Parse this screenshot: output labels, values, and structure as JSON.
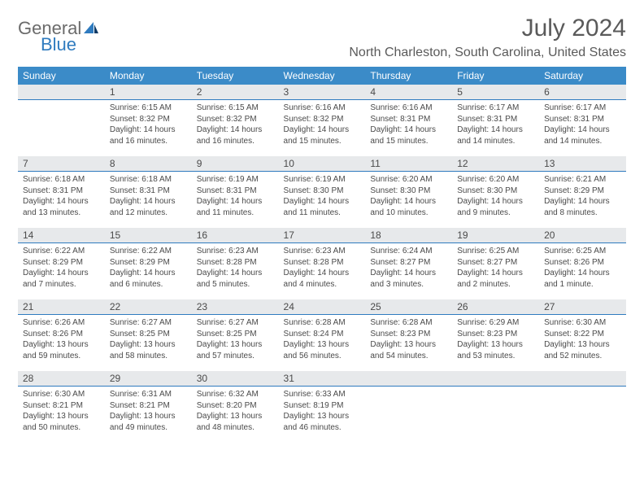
{
  "brand": {
    "word1": "General",
    "word2": "Blue"
  },
  "title": "July 2024",
  "location": "North Charleston, South Carolina, United States",
  "colors": {
    "header_bg": "#3b8bc8",
    "header_text": "#ffffff",
    "daynum_bg": "#e7e9eb",
    "rule": "#2f7bbf",
    "body_text": "#4a4a4a",
    "title_text": "#5a5a5a",
    "brand_grey": "#6b6b6b",
    "brand_blue": "#2f7bbf",
    "page_bg": "#ffffff"
  },
  "typography": {
    "title_fontsize": 30,
    "location_fontsize": 16,
    "header_fontsize": 12,
    "daynum_fontsize": 12,
    "body_fontsize": 10
  },
  "weekdays": [
    "Sunday",
    "Monday",
    "Tuesday",
    "Wednesday",
    "Thursday",
    "Friday",
    "Saturday"
  ],
  "weeks": [
    [
      null,
      {
        "n": "1",
        "sr": "Sunrise: 6:15 AM",
        "ss": "Sunset: 8:32 PM",
        "d1": "Daylight: 14 hours",
        "d2": "and 16 minutes."
      },
      {
        "n": "2",
        "sr": "Sunrise: 6:15 AM",
        "ss": "Sunset: 8:32 PM",
        "d1": "Daylight: 14 hours",
        "d2": "and 16 minutes."
      },
      {
        "n": "3",
        "sr": "Sunrise: 6:16 AM",
        "ss": "Sunset: 8:32 PM",
        "d1": "Daylight: 14 hours",
        "d2": "and 15 minutes."
      },
      {
        "n": "4",
        "sr": "Sunrise: 6:16 AM",
        "ss": "Sunset: 8:31 PM",
        "d1": "Daylight: 14 hours",
        "d2": "and 15 minutes."
      },
      {
        "n": "5",
        "sr": "Sunrise: 6:17 AM",
        "ss": "Sunset: 8:31 PM",
        "d1": "Daylight: 14 hours",
        "d2": "and 14 minutes."
      },
      {
        "n": "6",
        "sr": "Sunrise: 6:17 AM",
        "ss": "Sunset: 8:31 PM",
        "d1": "Daylight: 14 hours",
        "d2": "and 14 minutes."
      }
    ],
    [
      {
        "n": "7",
        "sr": "Sunrise: 6:18 AM",
        "ss": "Sunset: 8:31 PM",
        "d1": "Daylight: 14 hours",
        "d2": "and 13 minutes."
      },
      {
        "n": "8",
        "sr": "Sunrise: 6:18 AM",
        "ss": "Sunset: 8:31 PM",
        "d1": "Daylight: 14 hours",
        "d2": "and 12 minutes."
      },
      {
        "n": "9",
        "sr": "Sunrise: 6:19 AM",
        "ss": "Sunset: 8:31 PM",
        "d1": "Daylight: 14 hours",
        "d2": "and 11 minutes."
      },
      {
        "n": "10",
        "sr": "Sunrise: 6:19 AM",
        "ss": "Sunset: 8:30 PM",
        "d1": "Daylight: 14 hours",
        "d2": "and 11 minutes."
      },
      {
        "n": "11",
        "sr": "Sunrise: 6:20 AM",
        "ss": "Sunset: 8:30 PM",
        "d1": "Daylight: 14 hours",
        "d2": "and 10 minutes."
      },
      {
        "n": "12",
        "sr": "Sunrise: 6:20 AM",
        "ss": "Sunset: 8:30 PM",
        "d1": "Daylight: 14 hours",
        "d2": "and 9 minutes."
      },
      {
        "n": "13",
        "sr": "Sunrise: 6:21 AM",
        "ss": "Sunset: 8:29 PM",
        "d1": "Daylight: 14 hours",
        "d2": "and 8 minutes."
      }
    ],
    [
      {
        "n": "14",
        "sr": "Sunrise: 6:22 AM",
        "ss": "Sunset: 8:29 PM",
        "d1": "Daylight: 14 hours",
        "d2": "and 7 minutes."
      },
      {
        "n": "15",
        "sr": "Sunrise: 6:22 AM",
        "ss": "Sunset: 8:29 PM",
        "d1": "Daylight: 14 hours",
        "d2": "and 6 minutes."
      },
      {
        "n": "16",
        "sr": "Sunrise: 6:23 AM",
        "ss": "Sunset: 8:28 PM",
        "d1": "Daylight: 14 hours",
        "d2": "and 5 minutes."
      },
      {
        "n": "17",
        "sr": "Sunrise: 6:23 AM",
        "ss": "Sunset: 8:28 PM",
        "d1": "Daylight: 14 hours",
        "d2": "and 4 minutes."
      },
      {
        "n": "18",
        "sr": "Sunrise: 6:24 AM",
        "ss": "Sunset: 8:27 PM",
        "d1": "Daylight: 14 hours",
        "d2": "and 3 minutes."
      },
      {
        "n": "19",
        "sr": "Sunrise: 6:25 AM",
        "ss": "Sunset: 8:27 PM",
        "d1": "Daylight: 14 hours",
        "d2": "and 2 minutes."
      },
      {
        "n": "20",
        "sr": "Sunrise: 6:25 AM",
        "ss": "Sunset: 8:26 PM",
        "d1": "Daylight: 14 hours",
        "d2": "and 1 minute."
      }
    ],
    [
      {
        "n": "21",
        "sr": "Sunrise: 6:26 AM",
        "ss": "Sunset: 8:26 PM",
        "d1": "Daylight: 13 hours",
        "d2": "and 59 minutes."
      },
      {
        "n": "22",
        "sr": "Sunrise: 6:27 AM",
        "ss": "Sunset: 8:25 PM",
        "d1": "Daylight: 13 hours",
        "d2": "and 58 minutes."
      },
      {
        "n": "23",
        "sr": "Sunrise: 6:27 AM",
        "ss": "Sunset: 8:25 PM",
        "d1": "Daylight: 13 hours",
        "d2": "and 57 minutes."
      },
      {
        "n": "24",
        "sr": "Sunrise: 6:28 AM",
        "ss": "Sunset: 8:24 PM",
        "d1": "Daylight: 13 hours",
        "d2": "and 56 minutes."
      },
      {
        "n": "25",
        "sr": "Sunrise: 6:28 AM",
        "ss": "Sunset: 8:23 PM",
        "d1": "Daylight: 13 hours",
        "d2": "and 54 minutes."
      },
      {
        "n": "26",
        "sr": "Sunrise: 6:29 AM",
        "ss": "Sunset: 8:23 PM",
        "d1": "Daylight: 13 hours",
        "d2": "and 53 minutes."
      },
      {
        "n": "27",
        "sr": "Sunrise: 6:30 AM",
        "ss": "Sunset: 8:22 PM",
        "d1": "Daylight: 13 hours",
        "d2": "and 52 minutes."
      }
    ],
    [
      {
        "n": "28",
        "sr": "Sunrise: 6:30 AM",
        "ss": "Sunset: 8:21 PM",
        "d1": "Daylight: 13 hours",
        "d2": "and 50 minutes."
      },
      {
        "n": "29",
        "sr": "Sunrise: 6:31 AM",
        "ss": "Sunset: 8:21 PM",
        "d1": "Daylight: 13 hours",
        "d2": "and 49 minutes."
      },
      {
        "n": "30",
        "sr": "Sunrise: 6:32 AM",
        "ss": "Sunset: 8:20 PM",
        "d1": "Daylight: 13 hours",
        "d2": "and 48 minutes."
      },
      {
        "n": "31",
        "sr": "Sunrise: 6:33 AM",
        "ss": "Sunset: 8:19 PM",
        "d1": "Daylight: 13 hours",
        "d2": "and 46 minutes."
      },
      null,
      null,
      null
    ]
  ]
}
